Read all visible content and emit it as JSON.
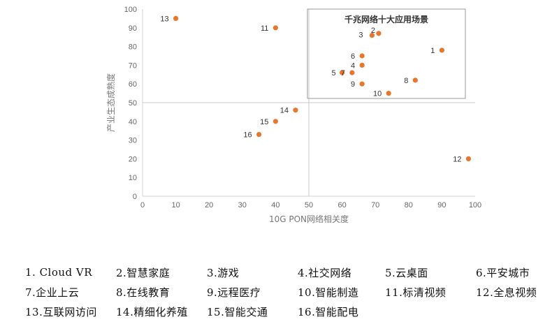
{
  "chart_data": {
    "type": "scatter",
    "title": "",
    "xlabel": "10G PON网络相关度",
    "ylabel": "产业生态成熟度",
    "xlim": [
      0,
      100
    ],
    "ylim": [
      0,
      100
    ],
    "xticks": [
      "0",
      "10",
      "20",
      "30",
      "40",
      "50",
      "60",
      "70",
      "80",
      "90",
      "100"
    ],
    "yticks": [
      "0",
      "10",
      "20",
      "30",
      "40",
      "50",
      "60",
      "70",
      "80",
      "90",
      "100"
    ],
    "grid": false,
    "quadrant_divider": {
      "x": 50,
      "y": 50
    },
    "highlight_box_title": "千兆网络十大应用场景",
    "marker_color": "#e8772e",
    "points": [
      {
        "label": "1",
        "x": 90,
        "y": 78
      },
      {
        "label": "2",
        "x": 71,
        "y": 87
      },
      {
        "label": "3",
        "x": 69,
        "y": 86
      },
      {
        "label": "4",
        "x": 66,
        "y": 70
      },
      {
        "label": "5",
        "x": 60,
        "y": 66
      },
      {
        "label": "6",
        "x": 66,
        "y": 75
      },
      {
        "label": "7",
        "x": 63,
        "y": 66
      },
      {
        "label": "8",
        "x": 82,
        "y": 62
      },
      {
        "label": "9",
        "x": 66,
        "y": 60
      },
      {
        "label": "10",
        "x": 74,
        "y": 55
      },
      {
        "label": "11",
        "x": 40,
        "y": 90
      },
      {
        "label": "12",
        "x": 98,
        "y": 20
      },
      {
        "label": "13",
        "x": 10,
        "y": 95
      },
      {
        "label": "14",
        "x": 46,
        "y": 46
      },
      {
        "label": "15",
        "x": 40,
        "y": 40
      },
      {
        "label": "16",
        "x": 35,
        "y": 33
      }
    ]
  },
  "legend_rows": [
    [
      "1. Cloud VR",
      "2.智慧家庭",
      "3.游戏",
      "4.社交网络",
      "5.云桌面",
      "6.平安城市"
    ],
    [
      "7.企业上云",
      "8.在线教育",
      "9.远程医疗",
      "10.智能制造",
      "11.标清视频",
      "12.全息视频"
    ],
    [
      "13.互联网访问",
      "14.精细化养殖",
      "15.智能交通",
      "16.智能配电"
    ]
  ]
}
